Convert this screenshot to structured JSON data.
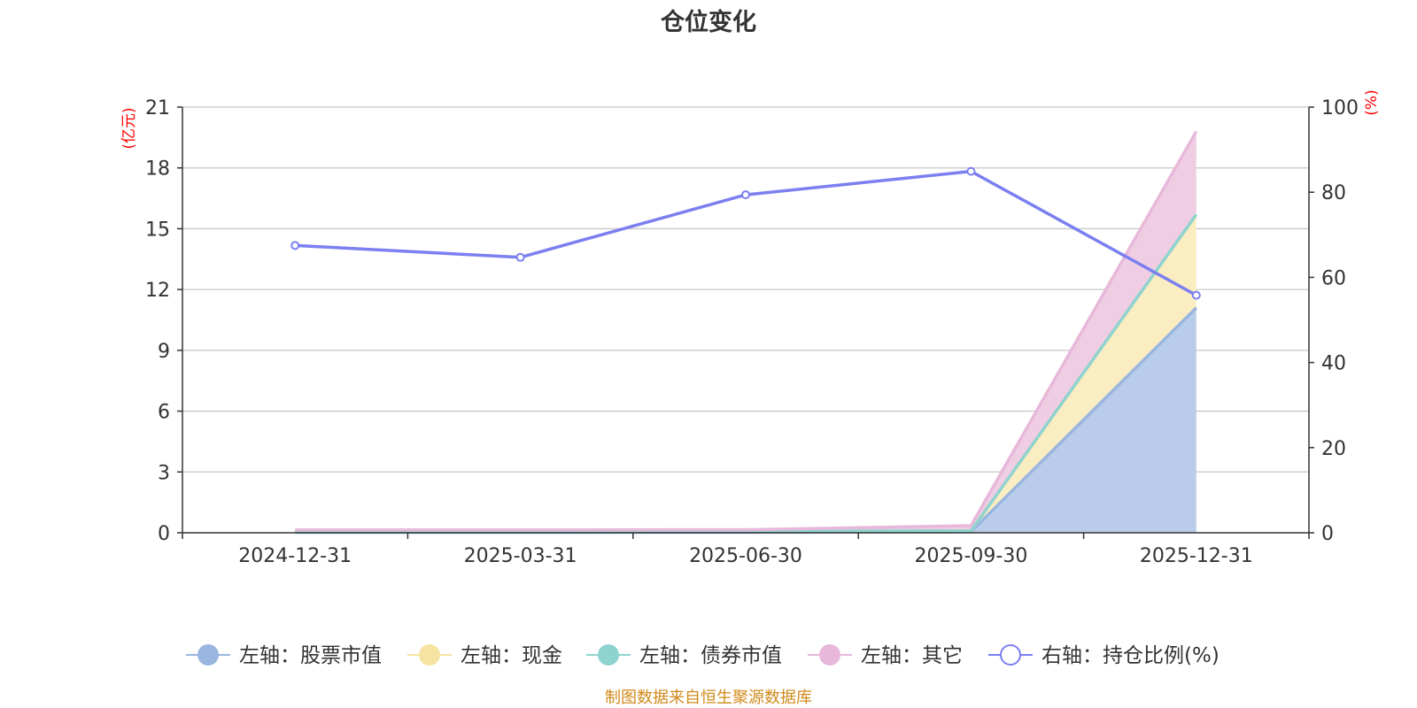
{
  "chart_data": {
    "type": "area",
    "title": "仓位变化",
    "categories": [
      "2024-12-31",
      "2025-03-31",
      "2025-06-30",
      "2025-09-30",
      "2025-12-31"
    ],
    "left_axis": {
      "unit": "(亿元)",
      "range": [
        0,
        21
      ],
      "ticks": [
        0,
        3,
        6,
        9,
        12,
        15,
        18,
        21
      ]
    },
    "right_axis": {
      "unit": "(%)",
      "range": [
        0,
        100
      ],
      "ticks": [
        0,
        20,
        40,
        60,
        80,
        100
      ]
    },
    "series": [
      {
        "name": "左轴：股票市值",
        "axis": "left",
        "type": "stacked-area",
        "color": "#9ab6e0",
        "fill": "#b9cdea",
        "values": [
          0.02,
          0.02,
          0.03,
          0.05,
          11.1
        ]
      },
      {
        "name": "左轴：现金",
        "axis": "left",
        "type": "stacked-area",
        "color": "#f7e3a1",
        "fill": "#faedc2",
        "values": [
          0.05,
          0.05,
          0.05,
          0.05,
          4.6
        ]
      },
      {
        "name": "左轴：债券市值",
        "axis": "left",
        "type": "stacked-area",
        "color": "#8fd3d0",
        "fill": "#c6e8e3",
        "values": [
          0.0,
          0.0,
          0.0,
          0.0,
          0.0
        ]
      },
      {
        "name": "左轴：其它",
        "axis": "left",
        "type": "stacked-area",
        "color": "#e7b8da",
        "fill": "#efcde3",
        "values": [
          0.07,
          0.07,
          0.07,
          0.25,
          4.1
        ]
      },
      {
        "name": "右轴：持仓比例(%)",
        "axis": "right",
        "type": "line",
        "color": "#7b7ff0",
        "values": [
          67.5,
          64.7,
          79.4,
          84.9,
          55.8
        ]
      }
    ],
    "grid": true,
    "legend_position": "bottom"
  },
  "footer": {
    "source": "制图数据来自恒生聚源数据库"
  }
}
